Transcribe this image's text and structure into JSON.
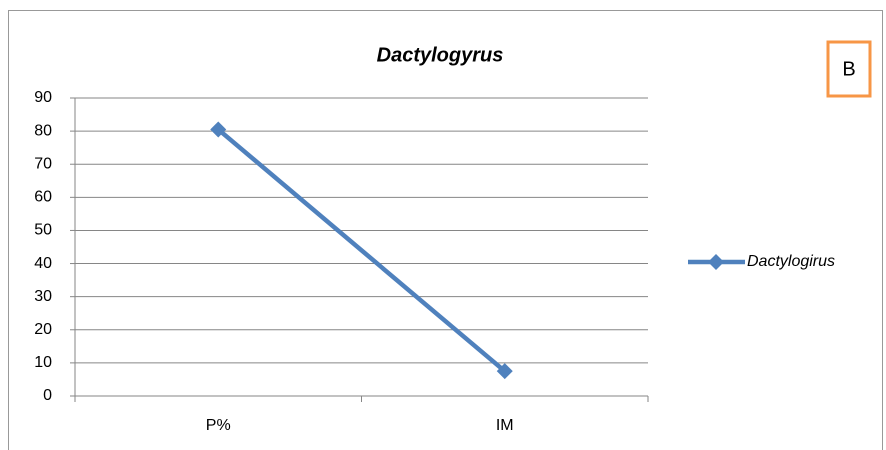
{
  "chart_data": {
    "type": "line",
    "title": "Dactylogyrus",
    "annotation": "B",
    "categories": [
      "P%",
      "IM"
    ],
    "series": [
      {
        "name": "Dactylogirus",
        "color": "#4f81bd",
        "values": [
          80.5,
          7.5
        ]
      }
    ],
    "ylim": [
      0,
      90
    ],
    "yticks": [
      0,
      10,
      20,
      30,
      40,
      50,
      60,
      70,
      80,
      90
    ],
    "grid": true,
    "legend": "right"
  }
}
